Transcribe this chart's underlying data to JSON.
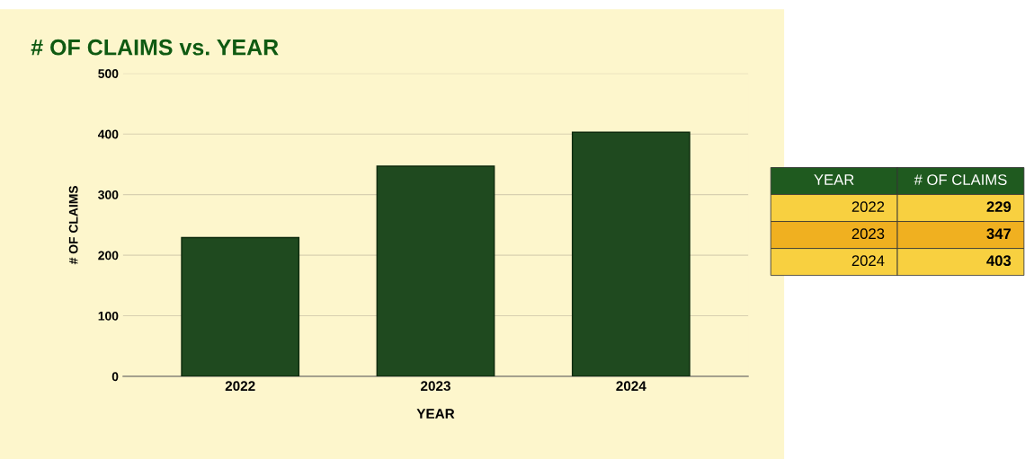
{
  "chart_data": {
    "type": "bar",
    "title": "# OF CLAIMS vs. YEAR",
    "xlabel": "YEAR",
    "ylabel": "# OF CLAIMS",
    "categories": [
      "2022",
      "2023",
      "2024"
    ],
    "values": [
      229,
      347,
      403
    ],
    "color": "#1f4a1f",
    "ylim": [
      0,
      500
    ],
    "yticks": [
      0,
      100,
      200,
      300,
      400,
      500
    ],
    "annotations": [
      "229",
      "347",
      "403"
    ],
    "grid": "y"
  }
}
